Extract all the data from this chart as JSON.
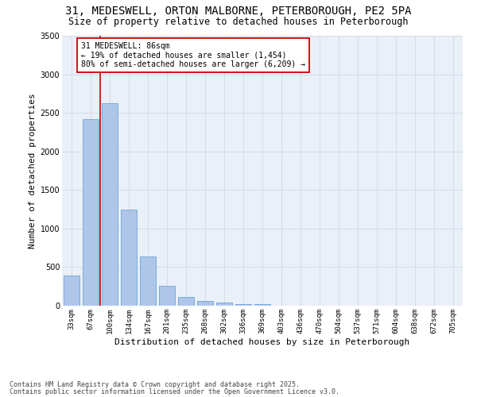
{
  "title_line1": "31, MEDESWELL, ORTON MALBORNE, PETERBOROUGH, PE2 5PA",
  "title_line2": "Size of property relative to detached houses in Peterborough",
  "xlabel": "Distribution of detached houses by size in Peterborough",
  "ylabel": "Number of detached properties",
  "categories": [
    "33sqm",
    "67sqm",
    "100sqm",
    "134sqm",
    "167sqm",
    "201sqm",
    "235sqm",
    "268sqm",
    "302sqm",
    "336sqm",
    "369sqm",
    "403sqm",
    "436sqm",
    "470sqm",
    "504sqm",
    "537sqm",
    "571sqm",
    "604sqm",
    "638sqm",
    "672sqm",
    "705sqm"
  ],
  "values": [
    390,
    2420,
    2630,
    1250,
    640,
    260,
    110,
    60,
    45,
    25,
    20,
    5,
    2,
    1,
    0,
    0,
    0,
    0,
    0,
    0,
    0
  ],
  "bar_color": "#aec6e8",
  "bar_edge_color": "#5b9bd5",
  "annotation_text": "31 MEDESWELL: 86sqm\n← 19% of detached houses are smaller (1,454)\n80% of semi-detached houses are larger (6,209) →",
  "annotation_box_color": "#ffffff",
  "annotation_box_edge_color": "#cc0000",
  "vline_color": "#cc0000",
  "grid_color": "#d0d8e8",
  "background_color": "#eaf0f8",
  "ylim": [
    0,
    3500
  ],
  "footer_line1": "Contains HM Land Registry data © Crown copyright and database right 2025.",
  "footer_line2": "Contains public sector information licensed under the Open Government Licence v3.0.",
  "title_fontsize": 10,
  "subtitle_fontsize": 8.5,
  "axis_label_fontsize": 8,
  "tick_fontsize": 6.5,
  "annotation_fontsize": 7,
  "footer_fontsize": 6
}
